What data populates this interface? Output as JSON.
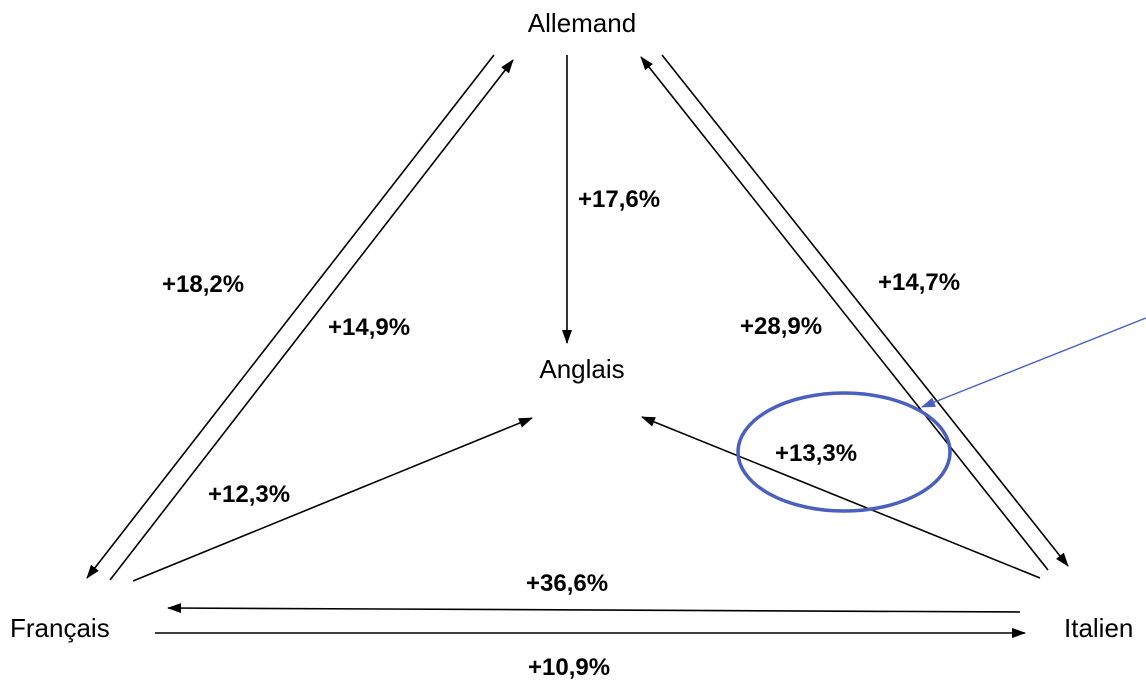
{
  "nodes": {
    "allemand": "Allemand",
    "anglais": "Anglais",
    "francais": "Français",
    "italien": "Italien"
  },
  "edges": {
    "allemand_to_anglais": "+17,6%",
    "allemand_to_francais": "+18,2%",
    "francais_to_allemand": "+14,9%",
    "allemand_to_italien": "+14,7%",
    "italien_to_allemand": "+28,9%",
    "italien_to_anglais": "+13,3%",
    "francais_to_anglais": "+12,3%",
    "italien_to_francais": "+36,6%",
    "francais_to_italien": "+10,9%"
  },
  "colors": {
    "arrow": "#000000",
    "highlight": "#4a5fbf"
  }
}
